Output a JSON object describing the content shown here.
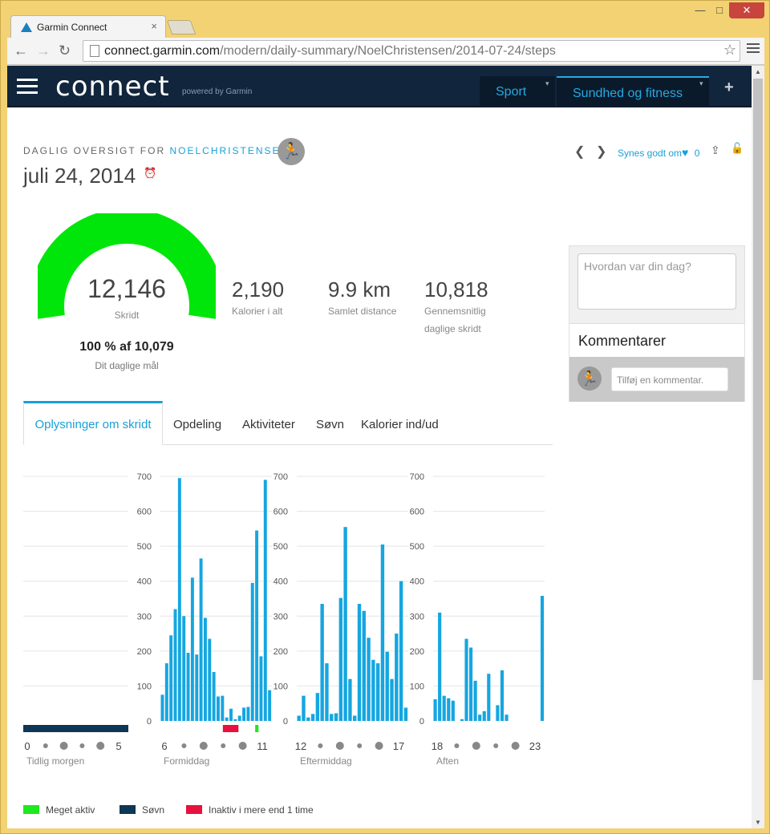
{
  "browser": {
    "tab_title": "Garmin Connect",
    "url_domain": "connect.garmin.com",
    "url_path": "/modern/daily-summary/NoelChristensen/2014-07-24/steps"
  },
  "header": {
    "logo": "connect",
    "powered_by": "powered by Garmin",
    "nav": [
      {
        "label": "Sport",
        "active": false
      },
      {
        "label": "Sundhed og fitness",
        "active": true
      }
    ]
  },
  "summary": {
    "subtitle_prefix": "DAGLIG OVERSIGT FOR",
    "username": "NOELCHRISTENSEN",
    "date": "juli 24, 2014",
    "like_label": "Synes godt om",
    "like_count": "0",
    "steps": "12,146",
    "steps_label": "Skridt",
    "goal_text": "100 % af 10,079",
    "goal_sub": "Dit daglige mål",
    "goal_progress": 1.0,
    "stats": [
      {
        "value": "2,190",
        "label": "Kalorier i alt"
      },
      {
        "value": "9.9 km",
        "label": "Samlet distance"
      },
      {
        "value": "10,818",
        "label": "Gennemsnitlig daglige skridt"
      }
    ]
  },
  "side": {
    "mood_placeholder": "Hvordan var din dag?",
    "comments_title": "Kommentarer",
    "comment_placeholder": "Tilføj en kommentar."
  },
  "tabs": [
    "Oplysninger om skridt",
    "Opdeling",
    "Aktiviteter",
    "Søvn",
    "Kalorier ind/ud"
  ],
  "legend": [
    {
      "label": "Meget aktiv",
      "color": "#1ee81e"
    },
    {
      "label": "Søvn",
      "color": "#0f3655"
    },
    {
      "label": "Inaktiv i mere end 1 time",
      "color": "#e8103e"
    }
  ],
  "colors": {
    "accent": "#1a9fd6",
    "bar": "#15a6e0",
    "gauge": "#00e60a",
    "sleep": "#0f3655",
    "inactive": "#e8103e",
    "very_active": "#1ee81e"
  },
  "chart_data": {
    "type": "bar",
    "ylim": [
      0,
      700
    ],
    "yticks": [
      0,
      100,
      200,
      300,
      400,
      500,
      600,
      700
    ],
    "panels": [
      {
        "name": "Tidlig morgen",
        "start": "0",
        "end": "5",
        "values": [],
        "bands": [
          {
            "type": "sleep",
            "from": 0.0,
            "to": 1.0
          }
        ]
      },
      {
        "name": "Formiddag",
        "start": "6",
        "end": "11",
        "values": [
          75,
          165,
          245,
          320,
          695,
          300,
          195,
          410,
          190,
          465,
          295,
          235,
          140,
          70,
          72,
          10,
          35,
          5,
          15,
          38,
          40,
          395,
          545,
          185,
          690,
          88
        ],
        "bands": [
          {
            "type": "inactive",
            "from": 0.56,
            "to": 0.7
          },
          {
            "type": "very_active",
            "from": 0.85,
            "to": 0.88
          }
        ]
      },
      {
        "name": "Eftermiddag",
        "start": "12",
        "end": "17",
        "values": [
          15,
          72,
          10,
          20,
          80,
          335,
          165,
          20,
          22,
          352,
          555,
          120,
          15,
          335,
          315,
          238,
          175,
          165,
          505,
          198,
          120,
          250,
          400,
          38
        ],
        "bands": []
      },
      {
        "name": "Aften",
        "start": "18",
        "end": "23",
        "values": [
          62,
          310,
          72,
          65,
          58,
          0,
          5,
          235,
          210,
          115,
          18,
          28,
          135,
          0,
          45,
          145,
          18,
          0,
          0,
          0,
          0,
          0,
          0,
          0,
          358
        ],
        "bands": []
      }
    ]
  }
}
